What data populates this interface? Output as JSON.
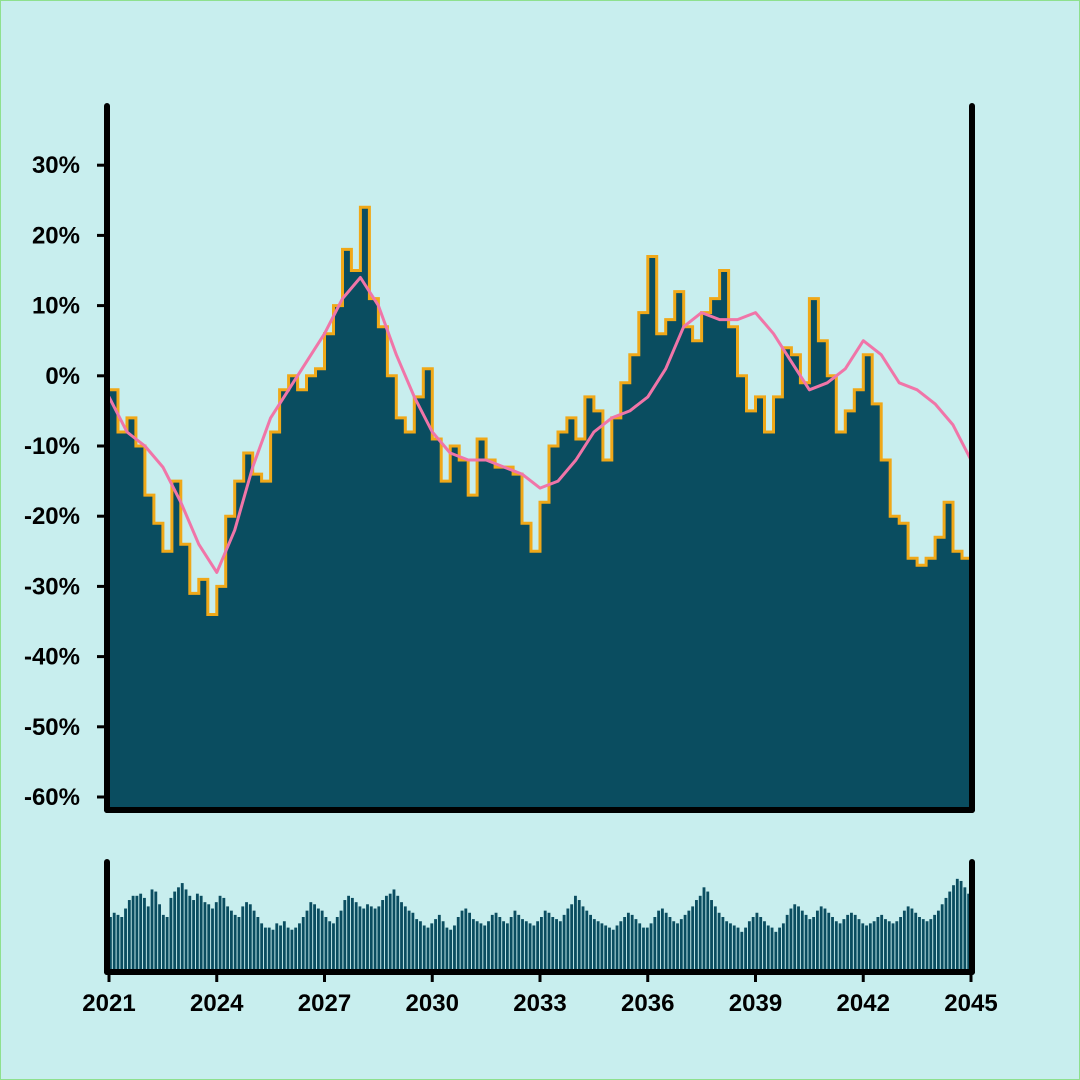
{
  "colors": {
    "background": "#c8eeee",
    "area_fill": "#0a4d60",
    "price_line": "#f0a818",
    "moving_average": "#f075a8",
    "volume": "#0a4d60",
    "axis": "#000000"
  },
  "chart_data": [
    {
      "type": "area",
      "title": "",
      "xlabel": "",
      "ylabel": "",
      "xlim": [
        2021,
        2045
      ],
      "ylim": [
        -60,
        40
      ],
      "y_tick_values": [
        30,
        20,
        10,
        0,
        -10,
        -20,
        -30,
        -40,
        -50,
        -60
      ],
      "y_tick_labels": [
        "30%",
        "20%",
        "10%",
        "0%",
        "-10%",
        "-20%",
        "-30%",
        "-40%",
        "-50%",
        "-60%"
      ],
      "grid": false,
      "legend": "none",
      "series": [
        {
          "style": "stepped area with line",
          "x": [
            2021.0,
            2021.25,
            2021.5,
            2021.75,
            2022.0,
            2022.25,
            2022.5,
            2022.75,
            2023.0,
            2023.25,
            2023.5,
            2023.75,
            2024.0,
            2024.25,
            2024.5,
            2024.75,
            2025.0,
            2025.25,
            2025.5,
            2025.75,
            2026.0,
            2026.25,
            2026.5,
            2026.75,
            2027.0,
            2027.25,
            2027.5,
            2027.75,
            2028.0,
            2028.25,
            2028.5,
            2028.75,
            2029.0,
            2029.25,
            2029.5,
            2029.75,
            2030.0,
            2030.25,
            2030.5,
            2030.75,
            2031.0,
            2031.25,
            2031.5,
            2031.75,
            2032.0,
            2032.25,
            2032.5,
            2032.75,
            2033.0,
            2033.25,
            2033.5,
            2033.75,
            2034.0,
            2034.25,
            2034.5,
            2034.75,
            2035.0,
            2035.25,
            2035.5,
            2035.75,
            2036.0,
            2036.25,
            2036.5,
            2036.75,
            2037.0,
            2037.25,
            2037.5,
            2037.75,
            2038.0,
            2038.25,
            2038.5,
            2038.75,
            2039.0,
            2039.25,
            2039.5,
            2039.75,
            2040.0,
            2040.25,
            2040.5,
            2040.75,
            2041.0,
            2041.25,
            2041.5,
            2041.75,
            2042.0,
            2042.25,
            2042.5,
            2042.75,
            2043.0,
            2043.25,
            2043.5,
            2043.75,
            2044.0,
            2044.25,
            2044.5,
            2044.75,
            2045.0
          ],
          "y": [
            -2,
            -8,
            -6,
            -10,
            -17,
            -21,
            -25,
            -15,
            -24,
            -31,
            -29,
            -34,
            -30,
            -20,
            -15,
            -11,
            -14,
            -15,
            -8,
            -2,
            0,
            -2,
            0,
            1,
            6,
            10,
            18,
            15,
            24,
            11,
            7,
            0,
            -6,
            -8,
            -3,
            1,
            -9,
            -15,
            -10,
            -12,
            -17,
            -9,
            -12,
            -13,
            -13,
            -14,
            -21,
            -25,
            -18,
            -10,
            -8,
            -6,
            -9,
            -3,
            -5,
            -12,
            -6,
            -1,
            3,
            9,
            17,
            6,
            8,
            12,
            7,
            5,
            9,
            11,
            15,
            7,
            0,
            -5,
            -3,
            -8,
            -3,
            4,
            3,
            -1,
            11,
            5,
            0,
            -8,
            -5,
            -2,
            3,
            -4,
            -12,
            -20,
            -21,
            -26,
            -27,
            -26,
            -23,
            -18,
            -25,
            -26,
            -27
          ]
        },
        {
          "name": "",
          "style": "moving average line",
          "x": [
            2021.0,
            2021.5,
            2022.0,
            2022.5,
            2023.0,
            2023.5,
            2024.0,
            2024.5,
            2025.0,
            2025.5,
            2026.0,
            2026.5,
            2027.0,
            2027.5,
            2028.0,
            2028.5,
            2029.0,
            2029.5,
            2030.0,
            2030.5,
            2031.0,
            2031.5,
            2032.0,
            2032.5,
            2033.0,
            2033.5,
            2034.0,
            2034.5,
            2035.0,
            2035.5,
            2036.0,
            2036.5,
            2037.0,
            2037.5,
            2038.0,
            2038.5,
            2039.0,
            2039.5,
            2040.0,
            2040.5,
            2041.0,
            2041.5,
            2042.0,
            2042.5,
            2043.0,
            2043.5,
            2044.0,
            2044.5,
            2045.0
          ],
          "y": [
            -3,
            -8,
            -10,
            -13,
            -18,
            -24,
            -28,
            -22,
            -13,
            -6,
            -2,
            2,
            6,
            11,
            14,
            10,
            3,
            -3,
            -8,
            -11,
            -12,
            -12,
            -13,
            -14,
            -16,
            -15,
            -12,
            -8,
            -6,
            -5,
            -3,
            1,
            7,
            9,
            8,
            8,
            9,
            6,
            2,
            -2,
            -1,
            1,
            5,
            3,
            -1,
            -2,
            -4,
            -7,
            -12
          ]
        }
      ]
    },
    {
      "type": "bar",
      "title": "",
      "x_tick_values": [
        2021,
        2024,
        2027,
        2030,
        2033,
        2036,
        2039,
        2042,
        2045
      ],
      "x_tick_labels": [
        "2021",
        "2024",
        "2027",
        "2030",
        "2033",
        "2036",
        "2039",
        "2042",
        "2045"
      ],
      "xlim": [
        2021,
        2045
      ],
      "ylim": [
        0,
        100
      ],
      "grid": false,
      "legend": "none",
      "x_start": 2021,
      "x_step": 0.0625,
      "values": [
        50,
        54,
        52,
        50,
        58,
        66,
        70,
        70,
        72,
        68,
        60,
        76,
        74,
        62,
        52,
        50,
        68,
        74,
        78,
        82,
        76,
        70,
        66,
        72,
        70,
        64,
        62,
        58,
        64,
        70,
        68,
        60,
        56,
        52,
        50,
        60,
        64,
        62,
        56,
        50,
        44,
        40,
        40,
        38,
        44,
        42,
        46,
        40,
        38,
        40,
        44,
        50,
        56,
        64,
        62,
        58,
        56,
        50,
        46,
        44,
        50,
        56,
        66,
        70,
        68,
        64,
        60,
        58,
        62,
        60,
        58,
        60,
        66,
        70,
        72,
        76,
        70,
        64,
        60,
        56,
        54,
        48,
        46,
        42,
        40,
        44,
        48,
        52,
        46,
        40,
        38,
        42,
        50,
        56,
        58,
        54,
        48,
        46,
        44,
        42,
        46,
        52,
        54,
        50,
        46,
        44,
        50,
        56,
        52,
        48,
        46,
        44,
        42,
        46,
        50,
        56,
        54,
        50,
        48,
        46,
        52,
        58,
        62,
        70,
        66,
        60,
        56,
        52,
        48,
        46,
        44,
        42,
        40,
        38,
        42,
        46,
        50,
        54,
        52,
        48,
        44,
        40,
        40,
        44,
        50,
        56,
        58,
        54,
        50,
        46,
        44,
        48,
        52,
        56,
        60,
        66,
        70,
        78,
        74,
        66,
        60,
        54,
        50,
        46,
        44,
        42,
        40,
        36,
        40,
        46,
        50,
        54,
        50,
        46,
        42,
        40,
        36,
        40,
        44,
        52,
        58,
        62,
        60,
        56,
        52,
        48,
        50,
        56,
        60,
        58,
        54,
        50,
        46,
        44,
        48,
        52,
        54,
        52,
        48,
        44,
        42,
        44,
        46,
        50,
        52,
        48,
        46,
        44,
        46,
        50,
        56,
        60,
        58,
        54,
        50,
        48,
        46,
        48,
        52,
        56,
        62,
        68,
        74,
        80,
        86,
        84,
        78,
        72
      ]
    }
  ]
}
